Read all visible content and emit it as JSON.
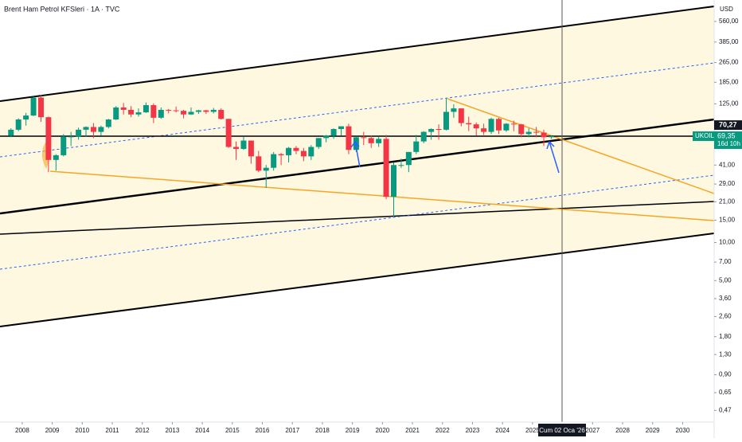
{
  "chart_data": {
    "type": "candlestick",
    "title": "Brent Ham Petrol KFSleri · 1A · TVC",
    "currency": "USD",
    "symbol": "UKOIL",
    "countdown": "16d 10h",
    "crosshair_label": "Cum 02 Oca '26",
    "line_price": {
      "value": 70.27,
      "label": "70,27"
    },
    "last_price": {
      "value": 69.35,
      "label": "69,35"
    },
    "up_color": "#089981",
    "down_color": "#f23645",
    "log_scale": true,
    "xlim": [
      2007.26,
      2031.05
    ],
    "ylim": [
      0.38,
      828
    ],
    "xticks": [
      2008,
      2009,
      2010,
      2011,
      2012,
      2013,
      2014,
      2015,
      2016,
      2017,
      2018,
      2019,
      2020,
      2021,
      2022,
      2023,
      2024,
      2025,
      2027,
      2028,
      2029,
      2030
    ],
    "yticks": [
      {
        "value": 560,
        "label": "560,00"
      },
      {
        "value": 385,
        "label": "385,00"
      },
      {
        "value": 265,
        "label": "265,00"
      },
      {
        "value": 185,
        "label": "185,00"
      },
      {
        "value": 125,
        "label": "125,00"
      },
      {
        "value": 41,
        "label": "41,00"
      },
      {
        "value": 29,
        "label": "29,00"
      },
      {
        "value": 21,
        "label": "21,00"
      },
      {
        "value": 15,
        "label": "15,00"
      },
      {
        "value": 10,
        "label": "10,00"
      },
      {
        "value": 7,
        "label": "7,00"
      },
      {
        "value": 5,
        "label": "5,00"
      },
      {
        "value": 3.6,
        "label": "3,60"
      },
      {
        "value": 2.6,
        "label": "2,60"
      },
      {
        "value": 1.8,
        "label": "1,80"
      },
      {
        "value": 1.3,
        "label": "1,30"
      },
      {
        "value": 0.9,
        "label": "0,90"
      },
      {
        "value": 0.65,
        "label": "0,65"
      },
      {
        "value": 0.47,
        "label": "0,47"
      }
    ],
    "candles": {
      "x": [
        2007.625,
        2007.875,
        2008.125,
        2008.375,
        2008.625,
        2008.875,
        2009.125,
        2009.375,
        2009.625,
        2009.875,
        2010.125,
        2010.375,
        2010.625,
        2010.875,
        2011.125,
        2011.375,
        2011.625,
        2011.875,
        2012.125,
        2012.375,
        2012.625,
        2012.875,
        2013.125,
        2013.375,
        2013.625,
        2013.875,
        2014.125,
        2014.375,
        2014.625,
        2014.875,
        2015.125,
        2015.375,
        2015.625,
        2015.875,
        2016.125,
        2016.375,
        2016.625,
        2016.875,
        2017.125,
        2017.375,
        2017.625,
        2017.875,
        2018.125,
        2018.375,
        2018.625,
        2018.875,
        2019.125,
        2019.375,
        2019.625,
        2019.875,
        2020.125,
        2020.375,
        2020.625,
        2020.875,
        2021.125,
        2021.375,
        2021.625,
        2021.875,
        2022.125,
        2022.375,
        2022.625,
        2022.875,
        2023.125,
        2023.375,
        2023.625,
        2023.875,
        2024.125,
        2024.375,
        2024.625,
        2024.875,
        2025.125,
        2025.375,
        2025.625
      ],
      "open": [
        70,
        78,
        94,
        101,
        140,
        98,
        45,
        49,
        69,
        69,
        78,
        82,
        75,
        82,
        94,
        117,
        112,
        103,
        107,
        122,
        97,
        112,
        111,
        110,
        103,
        108,
        111,
        108,
        112,
        95,
        57,
        55,
        64,
        48,
        37,
        39,
        50,
        49,
        56,
        53,
        48,
        57,
        67,
        70,
        79,
        83,
        54,
        68,
        67,
        61,
        66,
        23,
        41,
        41,
        52,
        63,
        75,
        79,
        78,
        108,
        115,
        88,
        86,
        80,
        75,
        95,
        77,
        87,
        86,
        72,
        75,
        74,
        68
      ],
      "high": [
        80,
        96,
        106,
        143,
        147,
        99,
        50,
        72,
        75,
        81,
        83,
        88,
        84,
        95,
        120,
        127,
        120,
        115,
        128,
        126,
        117,
        114,
        119,
        112,
        117,
        112,
        112,
        116,
        115,
        95,
        63,
        69,
        64,
        53,
        41,
        52,
        51,
        57,
        58,
        56,
        59,
        67,
        71,
        80,
        83,
        87,
        69,
        75,
        70,
        69,
        71,
        43,
        46,
        52,
        71,
        76,
        80,
        86,
        139,
        124,
        115,
        99,
        89,
        87,
        97,
        97,
        88,
        92,
        87,
        80,
        82,
        78,
        70
      ],
      "low": [
        68,
        76,
        84,
        100,
        90,
        36,
        37,
        48,
        58,
        65,
        69,
        67,
        70,
        80,
        93,
        103,
        98,
        99,
        106,
        88,
        95,
        105,
        107,
        96,
        102,
        104,
        104,
        105,
        94,
        56,
        45,
        54,
        42,
        36,
        27,
        37,
        41,
        43,
        50,
        44,
        45,
        55,
        62,
        66,
        70,
        50,
        52,
        59,
        56,
        57,
        22,
        16,
        39,
        36,
        50,
        61,
        65,
        65,
        77,
        97,
        83,
        76,
        70,
        71,
        72,
        72,
        75,
        76,
        68,
        68,
        68,
        58,
        66
      ],
      "close": [
        78,
        94,
        101,
        140,
        98,
        45,
        49,
        69,
        69,
        78,
        82,
        75,
        82,
        94,
        117,
        112,
        103,
        107,
        122,
        97,
        112,
        111,
        110,
        103,
        108,
        111,
        108,
        112,
        95,
        57,
        55,
        64,
        48,
        37,
        39,
        50,
        49,
        56,
        53,
        48,
        57,
        67,
        70,
        79,
        83,
        54,
        68,
        67,
        61,
        66,
        23,
        41,
        41,
        52,
        63,
        75,
        79,
        78,
        108,
        115,
        88,
        86,
        80,
        75,
        95,
        77,
        87,
        86,
        72,
        75,
        74,
        68,
        69.35
      ]
    }
  }
}
